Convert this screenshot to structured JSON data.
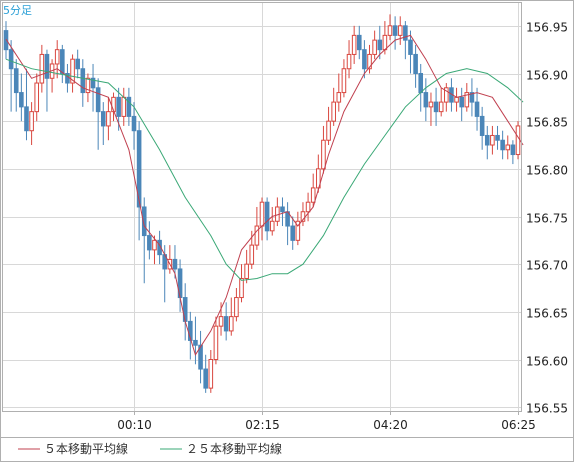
{
  "timeframe_label": "5分足",
  "legend": {
    "ma5_label": "５本移動平均線",
    "ma25_label": "２５本移動平均線"
  },
  "colors": {
    "up": "#d9473f",
    "down": "#4b86b8",
    "ma5": "#c0404f",
    "ma25": "#3aa876",
    "grid": "#d8d8d8",
    "frame": "#b0b0b0",
    "timeframe": "#2a9fd6"
  },
  "chart_data": {
    "type": "candlestick",
    "ylim": [
      156.546,
      156.975
    ],
    "y_ticks": [
      "156.55",
      "156.60",
      "156.65",
      "156.70",
      "156.75",
      "156.80",
      "156.85",
      "156.90",
      "156.95"
    ],
    "x_ticks": [
      "00:10",
      "02:15",
      "04:20",
      "06:25"
    ],
    "candle_count": 101,
    "x_tick_indices": [
      25,
      50,
      75,
      100
    ],
    "series": [
      {
        "name": "５本移動平均線",
        "kind": "line",
        "points": [
          [
            0,
            156.936
          ],
          [
            5,
            156.895
          ],
          [
            10,
            156.905
          ],
          [
            15,
            156.885
          ],
          [
            20,
            156.875
          ],
          [
            24,
            156.82
          ],
          [
            27,
            156.74
          ],
          [
            30,
            156.72
          ],
          [
            33,
            156.69
          ],
          [
            35,
            156.64
          ],
          [
            37,
            156.605
          ],
          [
            40,
            156.63
          ],
          [
            43,
            156.665
          ],
          [
            46,
            156.715
          ],
          [
            49,
            156.735
          ],
          [
            52,
            156.75
          ],
          [
            55,
            156.755
          ],
          [
            57,
            156.74
          ],
          [
            60,
            156.76
          ],
          [
            63,
            156.815
          ],
          [
            66,
            156.86
          ],
          [
            70,
            156.9
          ],
          [
            73,
            156.92
          ],
          [
            76,
            156.935
          ],
          [
            79,
            156.94
          ],
          [
            82,
            156.915
          ],
          [
            85,
            156.885
          ],
          [
            88,
            156.875
          ],
          [
            92,
            156.88
          ],
          [
            95,
            156.875
          ],
          [
            98,
            156.85
          ],
          [
            101,
            156.825
          ]
        ]
      },
      {
        "name": "２５本移動平均線",
        "kind": "line",
        "points": [
          [
            0,
            156.915
          ],
          [
            5,
            156.905
          ],
          [
            10,
            156.9
          ],
          [
            15,
            156.895
          ],
          [
            20,
            156.89
          ],
          [
            25,
            156.865
          ],
          [
            30,
            156.82
          ],
          [
            35,
            156.77
          ],
          [
            40,
            156.73
          ],
          [
            43,
            156.7
          ],
          [
            46,
            156.683
          ],
          [
            49,
            156.685
          ],
          [
            52,
            156.69
          ],
          [
            55,
            156.69
          ],
          [
            58,
            156.7
          ],
          [
            62,
            156.73
          ],
          [
            66,
            156.77
          ],
          [
            70,
            156.805
          ],
          [
            74,
            156.835
          ],
          [
            78,
            156.865
          ],
          [
            82,
            156.885
          ],
          [
            86,
            156.9
          ],
          [
            90,
            156.905
          ],
          [
            94,
            156.9
          ],
          [
            98,
            156.885
          ],
          [
            101,
            156.87
          ]
        ]
      }
    ],
    "candles": [
      [
        156.945,
        156.925,
        156.955,
        156.915
      ],
      [
        156.925,
        156.905,
        156.935,
        156.86
      ],
      [
        156.905,
        156.88,
        156.915,
        156.86
      ],
      [
        156.88,
        156.865,
        156.9,
        156.85
      ],
      [
        156.865,
        156.84,
        156.905,
        156.83
      ],
      [
        156.84,
        156.86,
        156.87,
        156.825
      ],
      [
        156.86,
        156.89,
        156.9,
        156.85
      ],
      [
        156.89,
        156.92,
        156.93,
        156.88
      ],
      [
        156.92,
        156.895,
        156.925,
        156.86
      ],
      [
        156.895,
        156.91,
        156.915,
        156.88
      ],
      [
        156.91,
        156.925,
        156.935,
        156.895
      ],
      [
        156.925,
        156.9,
        156.93,
        156.89
      ],
      [
        156.9,
        156.89,
        156.91,
        156.88
      ],
      [
        156.89,
        156.915,
        156.92,
        156.88
      ],
      [
        156.915,
        156.905,
        156.925,
        156.895
      ],
      [
        156.905,
        156.88,
        156.915,
        156.865
      ],
      [
        156.88,
        156.895,
        156.9,
        156.87
      ],
      [
        156.895,
        156.885,
        156.91,
        156.86
      ],
      [
        156.885,
        156.86,
        156.895,
        156.82
      ],
      [
        156.86,
        156.845,
        156.87,
        156.825
      ],
      [
        156.845,
        156.86,
        156.875,
        156.83
      ],
      [
        156.86,
        156.875,
        156.88,
        156.85
      ],
      [
        156.875,
        156.855,
        156.885,
        156.84
      ],
      [
        156.855,
        156.875,
        156.885,
        156.845
      ],
      [
        156.875,
        156.855,
        156.885,
        156.845
      ],
      [
        156.855,
        156.84,
        156.87,
        156.82
      ],
      [
        156.84,
        156.76,
        156.85,
        156.725
      ],
      [
        156.76,
        156.73,
        156.77,
        156.68
      ],
      [
        156.73,
        156.715,
        156.745,
        156.705
      ],
      [
        156.715,
        156.725,
        156.73,
        156.7
      ],
      [
        156.725,
        156.71,
        156.735,
        156.7
      ],
      [
        156.71,
        156.695,
        156.72,
        156.66
      ],
      [
        156.695,
        156.705,
        156.72,
        156.69
      ],
      [
        156.705,
        156.695,
        156.72,
        156.685
      ],
      [
        156.695,
        156.665,
        156.705,
        156.65
      ],
      [
        156.665,
        156.64,
        156.68,
        156.62
      ],
      [
        156.64,
        156.62,
        156.65,
        156.6
      ],
      [
        156.62,
        156.615,
        156.645,
        156.595
      ],
      [
        156.615,
        156.59,
        156.63,
        156.575
      ],
      [
        156.59,
        156.57,
        156.605,
        156.565
      ],
      [
        156.57,
        156.6,
        156.61,
        156.565
      ],
      [
        156.6,
        156.635,
        156.645,
        156.595
      ],
      [
        156.635,
        156.645,
        156.66,
        156.625
      ],
      [
        156.645,
        156.63,
        156.66,
        156.62
      ],
      [
        156.63,
        156.645,
        156.665,
        156.625
      ],
      [
        156.645,
        156.665,
        156.675,
        156.64
      ],
      [
        156.665,
        156.685,
        156.7,
        156.66
      ],
      [
        156.685,
        156.7,
        156.715,
        156.68
      ],
      [
        156.7,
        156.72,
        156.735,
        156.695
      ],
      [
        156.72,
        156.74,
        156.76,
        156.715
      ],
      [
        156.74,
        156.765,
        156.77,
        156.725
      ],
      [
        156.765,
        156.735,
        156.77,
        156.725
      ],
      [
        156.735,
        156.745,
        156.76,
        156.73
      ],
      [
        156.745,
        156.76,
        156.77,
        156.74
      ],
      [
        156.76,
        156.755,
        156.77,
        156.74
      ],
      [
        156.755,
        156.74,
        156.765,
        156.72
      ],
      [
        156.74,
        156.725,
        156.75,
        156.715
      ],
      [
        156.725,
        156.745,
        156.755,
        156.72
      ],
      [
        156.745,
        156.755,
        156.765,
        156.74
      ],
      [
        156.755,
        156.765,
        156.775,
        156.745
      ],
      [
        156.765,
        156.78,
        156.795,
        156.76
      ],
      [
        156.78,
        156.8,
        156.815,
        156.775
      ],
      [
        156.8,
        156.83,
        156.845,
        156.795
      ],
      [
        156.83,
        156.85,
        156.865,
        156.825
      ],
      [
        156.85,
        156.87,
        156.885,
        156.845
      ],
      [
        156.87,
        156.88,
        156.9,
        156.86
      ],
      [
        156.88,
        156.905,
        156.915,
        156.875
      ],
      [
        156.905,
        156.92,
        156.935,
        156.895
      ],
      [
        156.92,
        156.94,
        156.95,
        156.91
      ],
      [
        156.94,
        156.925,
        156.95,
        156.915
      ],
      [
        156.925,
        156.905,
        156.935,
        156.895
      ],
      [
        156.905,
        156.92,
        156.93,
        156.9
      ],
      [
        156.92,
        156.935,
        156.945,
        156.915
      ],
      [
        156.935,
        156.925,
        156.95,
        156.915
      ],
      [
        156.925,
        156.94,
        156.955,
        156.92
      ],
      [
        156.94,
        156.95,
        156.962,
        156.935
      ],
      [
        156.95,
        156.94,
        156.96,
        156.925
      ],
      [
        156.94,
        156.95,
        156.96,
        156.93
      ],
      [
        156.95,
        156.935,
        156.955,
        156.915
      ],
      [
        156.935,
        156.92,
        156.945,
        156.9
      ],
      [
        156.92,
        156.9,
        156.93,
        156.885
      ],
      [
        156.9,
        156.88,
        156.91,
        156.86
      ],
      [
        156.88,
        156.865,
        156.895,
        156.85
      ],
      [
        156.865,
        156.87,
        156.88,
        156.845
      ],
      [
        156.87,
        156.86,
        156.885,
        156.845
      ],
      [
        156.86,
        156.87,
        156.885,
        156.855
      ],
      [
        156.87,
        156.885,
        156.89,
        156.86
      ],
      [
        156.885,
        156.87,
        156.895,
        156.86
      ],
      [
        156.87,
        156.875,
        156.885,
        156.86
      ],
      [
        156.875,
        156.865,
        156.885,
        156.85
      ],
      [
        156.865,
        156.88,
        156.89,
        156.86
      ],
      [
        156.88,
        156.87,
        156.895,
        156.855
      ],
      [
        156.87,
        156.855,
        156.885,
        156.84
      ],
      [
        156.855,
        156.835,
        156.865,
        156.82
      ],
      [
        156.835,
        156.825,
        156.845,
        156.81
      ],
      [
        156.825,
        156.835,
        156.845,
        156.815
      ],
      [
        156.835,
        156.83,
        156.845,
        156.82
      ],
      [
        156.83,
        156.82,
        156.84,
        156.81
      ],
      [
        156.82,
        156.825,
        156.835,
        156.81
      ],
      [
        156.825,
        156.815,
        156.83,
        156.805
      ],
      [
        156.815,
        156.845,
        156.85,
        156.81
      ]
    ]
  }
}
